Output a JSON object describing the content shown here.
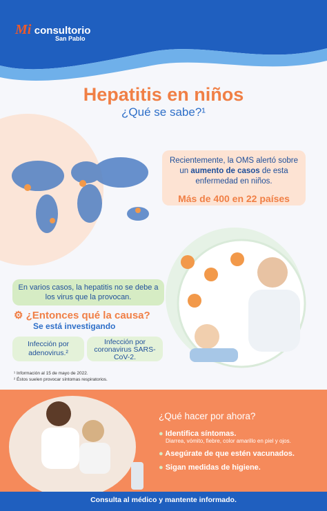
{
  "header": {
    "logo_mark": "Mi",
    "logo_name": "consultorio",
    "logo_sub": "San Pablo"
  },
  "title": "Hepatitis en niños",
  "subtitle": "¿Qué se sabe?¹",
  "alert": {
    "text": [
      "Recientemente, la OMS alertó sobre un ",
      "aumento de casos",
      " de esta enfermedad en niños."
    ],
    "highlight": "Más de 400 en 22 países"
  },
  "note": "En varios casos, la hepatitis no se debe a los virus que la provocan.",
  "cause": {
    "question": "¿Entonces qué la causa?",
    "answer": "Se está investigando",
    "options": [
      "Infección por adenovirus.²",
      "Infección por coronavirus SARS-CoV-2."
    ]
  },
  "footnotes": [
    "¹ Información al 15 de mayo de 2022.",
    "² Éstos suelen provocar síntomas respiratorios."
  ],
  "actions": {
    "title": "¿Qué hacer por ahora?",
    "items": [
      {
        "text": "Identifica síntomas.",
        "detail": "Diarrea, vómito, fiebre, color amarillo en piel y ojos."
      },
      {
        "text": "Asegúrate de que estén vacunados."
      },
      {
        "text": "Sigan medidas de higiene."
      }
    ]
  },
  "footer": "Consulta al médico y mantente informado."
}
